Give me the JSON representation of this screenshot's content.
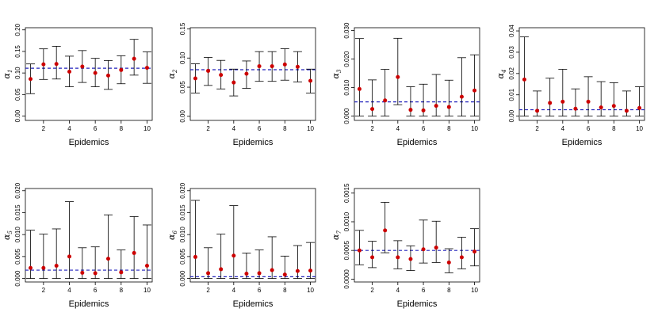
{
  "colors": {
    "point": "#cc0000",
    "reference": "#2222bb",
    "errorbar": "#000000",
    "frame": "#000000"
  },
  "chart_data": [
    {
      "type": "scatter",
      "ylabel": "α",
      "ylabel_sub": "1",
      "xlabel": "Epidemics",
      "x_ticks": [
        2,
        4,
        6,
        8,
        10
      ],
      "y_ticks": [
        "0.00",
        "0.05",
        "0.10",
        "0.15",
        "0.20"
      ],
      "xlim": [
        0.6,
        10.4
      ],
      "ylim": [
        -0.01,
        0.205
      ],
      "reference_line": 0.111,
      "x": [
        1,
        2,
        3,
        4,
        5,
        6,
        7,
        8,
        9,
        10
      ],
      "y": [
        0.086,
        0.12,
        0.121,
        0.103,
        0.115,
        0.1,
        0.094,
        0.107,
        0.133,
        0.112
      ],
      "lower": [
        0.052,
        0.085,
        0.086,
        0.068,
        0.078,
        0.068,
        0.062,
        0.075,
        0.095,
        0.076
      ],
      "upper": [
        0.121,
        0.156,
        0.162,
        0.139,
        0.152,
        0.134,
        0.129,
        0.14,
        0.178,
        0.149
      ]
    },
    {
      "type": "scatter",
      "ylabel": "α",
      "ylabel_sub": "2",
      "xlabel": "Epidemics",
      "x_ticks": [
        2,
        4,
        6,
        8,
        10
      ],
      "y_ticks": [
        "0.00",
        "0.05",
        "0.10",
        "0.15"
      ],
      "xlim": [
        0.6,
        10.4
      ],
      "ylim": [
        -0.007,
        0.152
      ],
      "reference_line": 0.08,
      "x": [
        1,
        2,
        3,
        4,
        5,
        6,
        7,
        8,
        9,
        10
      ],
      "y": [
        0.065,
        0.078,
        0.071,
        0.058,
        0.073,
        0.086,
        0.086,
        0.089,
        0.085,
        0.061
      ],
      "lower": [
        0.04,
        0.053,
        0.047,
        0.035,
        0.048,
        0.06,
        0.06,
        0.062,
        0.059,
        0.04
      ],
      "upper": [
        0.09,
        0.101,
        0.096,
        0.081,
        0.095,
        0.111,
        0.111,
        0.116,
        0.111,
        0.081
      ]
    },
    {
      "type": "scatter",
      "ylabel": "α",
      "ylabel_sub": "3",
      "xlabel": "Epidemics",
      "x_ticks": [
        2,
        4,
        6,
        8,
        10
      ],
      "y_ticks": [
        "0.000",
        "0.010",
        "0.020",
        "0.030"
      ],
      "xlim": [
        0.6,
        10.4
      ],
      "ylim": [
        -0.0015,
        0.031
      ],
      "reference_line": 0.005,
      "x": [
        1,
        2,
        3,
        4,
        5,
        6,
        7,
        8,
        9,
        10
      ],
      "y": [
        0.0095,
        0.0025,
        0.0055,
        0.0137,
        0.0022,
        0.002,
        0.0036,
        0.0032,
        0.0068,
        0.009
      ],
      "lower": [
        0.0,
        0.0,
        0.0,
        0.004,
        0.0,
        0.0,
        0.0,
        0.0,
        0.0,
        0.0
      ],
      "upper": [
        0.0272,
        0.0127,
        0.0164,
        0.0273,
        0.0103,
        0.0112,
        0.0146,
        0.0126,
        0.0205,
        0.0215
      ]
    },
    {
      "type": "scatter",
      "ylabel": "α",
      "ylabel_sub": "4",
      "xlabel": "Epidemics",
      "x_ticks": [
        2,
        4,
        6,
        8,
        10
      ],
      "y_ticks": [
        "0.00",
        "0.01",
        "0.02",
        "0.03",
        "0.04"
      ],
      "xlim": [
        0.6,
        10.4
      ],
      "ylim": [
        -0.002,
        0.0415
      ],
      "reference_line": 0.003,
      "x": [
        1,
        2,
        3,
        4,
        5,
        6,
        7,
        8,
        9,
        10
      ],
      "y": [
        0.0172,
        0.0025,
        0.0062,
        0.0068,
        0.0035,
        0.0068,
        0.0041,
        0.0048,
        0.0025,
        0.0038
      ],
      "lower": [
        0.0,
        0.0,
        0.0,
        0.0,
        0.0,
        0.0,
        0.0,
        0.0,
        0.0,
        0.0
      ],
      "upper": [
        0.0372,
        0.0118,
        0.0178,
        0.022,
        0.0128,
        0.0185,
        0.0162,
        0.0157,
        0.0118,
        0.0138
      ]
    },
    {
      "type": "scatter",
      "ylabel": "α",
      "ylabel_sub": "5",
      "xlabel": "Epidemics",
      "x_ticks": [
        2,
        4,
        6,
        8,
        10
      ],
      "y_ticks": [
        "0.000",
        "0.005",
        "0.010",
        "0.015",
        "0.020"
      ],
      "xlim": [
        0.6,
        10.4
      ],
      "ylim": [
        -0.0008,
        0.0205
      ],
      "reference_line": 0.0019,
      "x": [
        1,
        2,
        3,
        4,
        5,
        6,
        7,
        8,
        9,
        10
      ],
      "y": [
        0.0024,
        0.0024,
        0.0029,
        0.005,
        0.0013,
        0.0012,
        0.0045,
        0.0014,
        0.0058,
        0.0029
      ],
      "lower": [
        0.0,
        0.0,
        0.0,
        0.0,
        0.0,
        0.0,
        0.0,
        0.0,
        0.0,
        0.0
      ],
      "upper": [
        0.011,
        0.0101,
        0.0113,
        0.0175,
        0.007,
        0.0072,
        0.0145,
        0.0065,
        0.0141,
        0.0122
      ]
    },
    {
      "type": "scatter",
      "ylabel": "α",
      "ylabel_sub": "6",
      "xlabel": "Epidemics",
      "x_ticks": [
        2,
        4,
        6,
        8,
        10
      ],
      "y_ticks": [
        "0.000",
        "0.005",
        "0.010",
        "0.015",
        "0.020"
      ],
      "xlim": [
        0.6,
        10.4
      ],
      "ylim": [
        -0.0008,
        0.0205
      ],
      "reference_line": 0.0004,
      "x": [
        1,
        2,
        3,
        4,
        5,
        6,
        7,
        8,
        9,
        10
      ],
      "y": [
        0.0049,
        0.0012,
        0.0021,
        0.0052,
        0.0011,
        0.0012,
        0.0019,
        0.0009,
        0.0017,
        0.0018
      ],
      "lower": [
        0.0,
        0.0,
        0.0,
        0.0,
        0.0,
        0.0,
        0.0,
        0.0,
        0.0,
        0.0
      ],
      "upper": [
        0.0178,
        0.007,
        0.0101,
        0.0166,
        0.0058,
        0.0065,
        0.0095,
        0.0051,
        0.0075,
        0.0082
      ]
    },
    {
      "type": "scatter",
      "ylabel": "α",
      "ylabel_sub": "7",
      "xlabel": "Epidemics",
      "x_ticks": [
        2,
        4,
        6,
        8,
        10
      ],
      "y_ticks": [
        "0.0000",
        "0.0005",
        "0.0010",
        "0.0015"
      ],
      "xlim": [
        0.6,
        10.4
      ],
      "ylim": [
        -5e-05,
        0.00158
      ],
      "reference_line": 0.0005,
      "x": [
        1,
        2,
        3,
        4,
        5,
        6,
        7,
        8,
        9,
        10
      ],
      "y": [
        0.0005,
        0.00038,
        0.00085,
        0.00038,
        0.00035,
        0.00052,
        0.00055,
        0.00029,
        0.00038,
        0.00048
      ],
      "lower": [
        0.00025,
        0.0002,
        0.00046,
        0.00018,
        0.00015,
        0.00028,
        0.00029,
        0.00011,
        0.00018,
        0.00023
      ],
      "upper": [
        0.00085,
        0.00066,
        0.00134,
        0.00067,
        0.00058,
        0.00103,
        0.00101,
        0.00053,
        0.00073,
        0.00088
      ]
    }
  ]
}
